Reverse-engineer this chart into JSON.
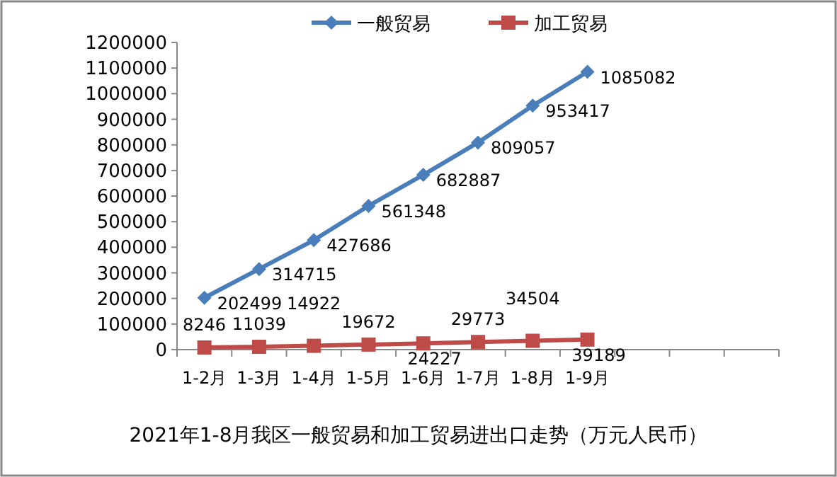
{
  "chart_data": {
    "type": "line",
    "title": "2021年1-8月我区一般贸易和加工贸易进出口走势（万元人民币）",
    "categories": [
      "1-2月",
      "1-3月",
      "1-4月",
      "1-5月",
      "1-6月",
      "1-7月",
      "1-8月",
      "1-9月",
      null,
      null,
      null
    ],
    "series": [
      {
        "name": "一般贸易",
        "color": "#4a7ebb",
        "marker": "diamond",
        "values": [
          202499,
          314715,
          427686,
          561348,
          682887,
          809057,
          953417,
          1085082,
          null,
          null,
          null
        ]
      },
      {
        "name": "加工贸易",
        "color": "#be4b48",
        "marker": "square",
        "values": [
          8246,
          11039,
          14922,
          19672,
          24227,
          29773,
          34504,
          39189,
          null,
          null,
          null
        ]
      }
    ],
    "ylim": [
      0,
      1200000
    ],
    "yticks": [
      0,
      100000,
      200000,
      300000,
      400000,
      500000,
      600000,
      700000,
      800000,
      900000,
      1000000,
      1100000,
      1200000
    ],
    "data_labels": true,
    "legend": "top",
    "grid": false,
    "line_style": "solid"
  }
}
